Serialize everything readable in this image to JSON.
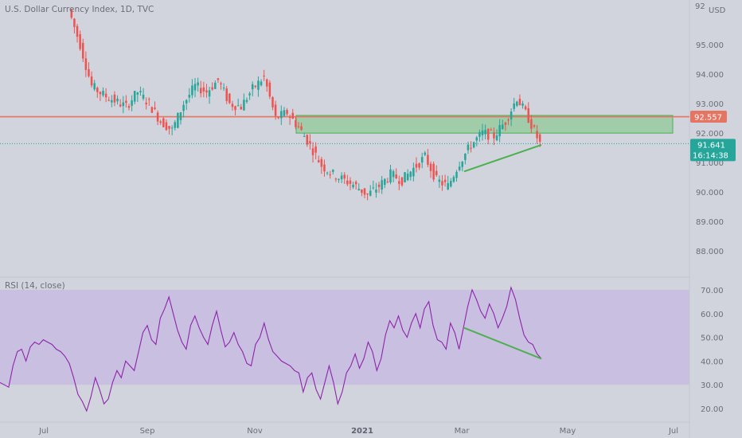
{
  "chart_title": "U.S. Dollar Currency Index, 1D, TVC",
  "currency": "USD",
  "price_label_partial": "92",
  "price_axis_ticks": [
    "95.000",
    "94.000",
    "93.000",
    "92.000",
    "91.000",
    "90.000",
    "89.000",
    "88.000"
  ],
  "rsi_title": "RSI (14, close)",
  "rsi_axis_ticks": [
    "70.00",
    "60.00",
    "50.00",
    "40.00",
    "30.00",
    "20.00"
  ],
  "time_axis_ticks": [
    "Jul",
    "Sep",
    "Nov",
    "2021",
    "Mar",
    "May",
    "Jul"
  ],
  "badges": {
    "resistance": "92.557",
    "last_price": "91.641",
    "countdown": "16:14:38"
  },
  "colors": {
    "background": "#d1d4dc",
    "up_candle": "#26a69a",
    "down_candle": "#ef5350",
    "resistance_line": "#e57463",
    "zone_fill": "#8fc99a",
    "trendline": "#4caf50",
    "rsi_line": "#8e24aa",
    "rsi_band": "#c9bfe1",
    "last_price_badge": "#26a69a"
  },
  "chart_data": {
    "type": "candlestick",
    "title": "U.S. Dollar Currency Index, 1D, TVC",
    "y_axis": {
      "min": 87.6,
      "max": 96.3,
      "unit": "USD",
      "ticks": [
        95,
        94,
        93,
        92,
        91,
        90,
        89,
        88
      ]
    },
    "x_ticks": [
      "Jul",
      "Sep",
      "Nov",
      "2021",
      "Mar",
      "May",
      "Jul"
    ],
    "approx_weekly_closes": [
      {
        "x": "Jun",
        "close": 96.2
      },
      {
        "x": "Jun",
        "close": 95.0
      },
      {
        "x": "Jul",
        "close": 93.6
      },
      {
        "x": "Jul",
        "close": 93.3
      },
      {
        "x": "Jul",
        "close": 93.1
      },
      {
        "x": "Aug",
        "close": 92.9
      },
      {
        "x": "Aug",
        "close": 93.4
      },
      {
        "x": "Aug",
        "close": 93.0
      },
      {
        "x": "Aug",
        "close": 92.4
      },
      {
        "x": "Sep",
        "close": 92.1
      },
      {
        "x": "Sep",
        "close": 93.0
      },
      {
        "x": "Sep",
        "close": 93.6
      },
      {
        "x": "Sep",
        "close": 93.4
      },
      {
        "x": "Oct",
        "close": 93.8
      },
      {
        "x": "Oct",
        "close": 93.0
      },
      {
        "x": "Oct",
        "close": 92.9
      },
      {
        "x": "Oct",
        "close": 93.5
      },
      {
        "x": "Oct",
        "close": 93.9
      },
      {
        "x": "Nov",
        "close": 92.5
      },
      {
        "x": "Nov",
        "close": 92.7
      },
      {
        "x": "Nov",
        "close": 92.2
      },
      {
        "x": "Nov",
        "close": 91.6
      },
      {
        "x": "Dec",
        "close": 90.9
      },
      {
        "x": "Dec",
        "close": 90.6
      },
      {
        "x": "Dec",
        "close": 90.4
      },
      {
        "x": "Dec",
        "close": 90.2
      },
      {
        "x": "Jan",
        "close": 89.9
      },
      {
        "x": "Jan",
        "close": 90.2
      },
      {
        "x": "Jan",
        "close": 90.6
      },
      {
        "x": "Jan",
        "close": 90.4
      },
      {
        "x": "Feb",
        "close": 90.8
      },
      {
        "x": "Feb",
        "close": 91.2
      },
      {
        "x": "Feb",
        "close": 90.4
      },
      {
        "x": "Feb",
        "close": 90.2
      },
      {
        "x": "Mar",
        "close": 91.0
      },
      {
        "x": "Mar",
        "close": 91.6
      },
      {
        "x": "Mar",
        "close": 92.0
      },
      {
        "x": "Mar",
        "close": 91.9
      },
      {
        "x": "Apr",
        "close": 92.4
      },
      {
        "x": "Apr",
        "close": 93.2
      },
      {
        "x": "Apr",
        "close": 92.5
      },
      {
        "x": "Apr",
        "close": 91.641
      }
    ],
    "annotations": {
      "resistance_level": 92.557,
      "last_price": 91.641,
      "demand_zone": {
        "low": 92.0,
        "high": 92.6,
        "from": "Nov",
        "to": "Apr"
      },
      "rising_trendline": {
        "from": {
          "x": "Mar",
          "y": 90.7
        },
        "to": {
          "x": "Apr",
          "y": 91.6
        }
      }
    },
    "rsi": {
      "title": "RSI (14, close)",
      "y_axis": {
        "min": 16,
        "max": 74,
        "ticks": [
          70,
          60,
          50,
          40,
          30,
          20
        ]
      },
      "band": [
        30,
        70
      ],
      "values": [
        31,
        30,
        29,
        38,
        44,
        45,
        40,
        46,
        48,
        47,
        49,
        48,
        47,
        45,
        44,
        42,
        39,
        33,
        26,
        23,
        19,
        25,
        33,
        28,
        22,
        24,
        31,
        36,
        33,
        40,
        38,
        36,
        44,
        52,
        55,
        49,
        47,
        58,
        62,
        67,
        60,
        53,
        48,
        45,
        55,
        59,
        54,
        50,
        47,
        55,
        61,
        53,
        46,
        48,
        52,
        47,
        44,
        39,
        38,
        47,
        50,
        56,
        49,
        44,
        42,
        40,
        39,
        38,
        36,
        35,
        27,
        33,
        35,
        28,
        24,
        31,
        38,
        31,
        22,
        27,
        35,
        38,
        43,
        37,
        41,
        48,
        44,
        36,
        41,
        51,
        57,
        54,
        59,
        53,
        50,
        56,
        60,
        54,
        62,
        65,
        55,
        49,
        48,
        45,
        56,
        52,
        45,
        54,
        63,
        70,
        66,
        61,
        58,
        64,
        60,
        54,
        58,
        63,
        71,
        66,
        58,
        51,
        48,
        47,
        43,
        41
      ],
      "bearish_divergence_line": {
        "from": {
          "x": "Mar",
          "y": 54
        },
        "to": {
          "x": "Apr",
          "y": 41
        }
      }
    }
  }
}
